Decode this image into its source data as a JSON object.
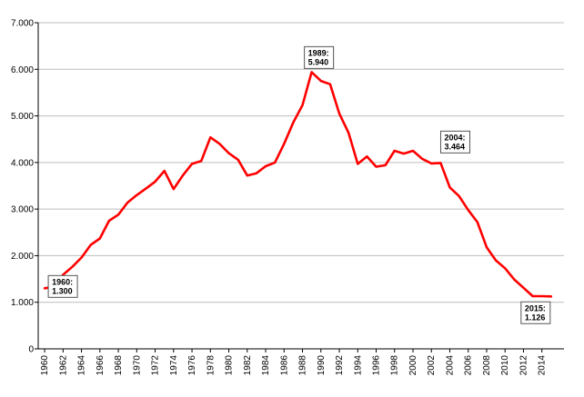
{
  "chart_data": {
    "type": "line",
    "title": "",
    "xlabel": "",
    "ylabel": "",
    "ylim": [
      0,
      7000
    ],
    "y_ticks": [
      {
        "value": 0,
        "label": "0"
      },
      {
        "value": 1000,
        "label": "1.000"
      },
      {
        "value": 2000,
        "label": "2.000"
      },
      {
        "value": 3000,
        "label": "3.000"
      },
      {
        "value": 4000,
        "label": "4.000"
      },
      {
        "value": 5000,
        "label": "5.000"
      },
      {
        "value": 6000,
        "label": "6.000"
      },
      {
        "value": 7000,
        "label": "7.000"
      }
    ],
    "x_ticks": [
      "1960",
      "1962",
      "1964",
      "1966",
      "1968",
      "1970",
      "1972",
      "1974",
      "1976",
      "1978",
      "1980",
      "1982",
      "1984",
      "1986",
      "1988",
      "1990",
      "1992",
      "1994",
      "1996",
      "1998",
      "2000",
      "2002",
      "2004",
      "2006",
      "2008",
      "2010",
      "2012",
      "2014"
    ],
    "grid": "horizontal",
    "line_color": "#ff0000",
    "series": [
      {
        "x": [
          1960,
          1961,
          1962,
          1963,
          1964,
          1965,
          1966,
          1967,
          1968,
          1969,
          1970,
          1971,
          1972,
          1973,
          1974,
          1975,
          1976,
          1977,
          1978,
          1979,
          1980,
          1981,
          1982,
          1983,
          1984,
          1985,
          1986,
          1987,
          1988,
          1989,
          1990,
          1991,
          1992,
          1993,
          1994,
          1995,
          1996,
          1997,
          1998,
          1999,
          2000,
          2001,
          2002,
          2003,
          2004,
          2005,
          2006,
          2007,
          2008,
          2009,
          2010,
          2011,
          2012,
          2013,
          2014,
          2015
        ],
        "values": [
          1300,
          1330,
          1590,
          1760,
          1960,
          2230,
          2370,
          2750,
          2880,
          3140,
          3300,
          3440,
          3590,
          3820,
          3430,
          3720,
          3970,
          4030,
          4540,
          4400,
          4200,
          4060,
          3720,
          3770,
          3920,
          4000,
          4400,
          4860,
          5230,
          5940,
          5750,
          5680,
          5050,
          4640,
          3970,
          4130,
          3910,
          3940,
          4250,
          4190,
          4250,
          4080,
          3980,
          3990,
          3464,
          3280,
          2980,
          2720,
          2180,
          1900,
          1730,
          1490,
          1310,
          1130,
          1130,
          1126
        ]
      }
    ],
    "annotations": [
      {
        "x": 1960,
        "value": 1300,
        "year_label": "1960:",
        "value_label": "1.300"
      },
      {
        "x": 1989,
        "value": 5940,
        "year_label": "1989:",
        "value_label": "5.940"
      },
      {
        "x": 2004,
        "value": 3464,
        "year_label": "2004:",
        "value_label": "3.464"
      },
      {
        "x": 2015,
        "value": 1126,
        "year_label": "2015:",
        "value_label": "1.126"
      }
    ]
  }
}
